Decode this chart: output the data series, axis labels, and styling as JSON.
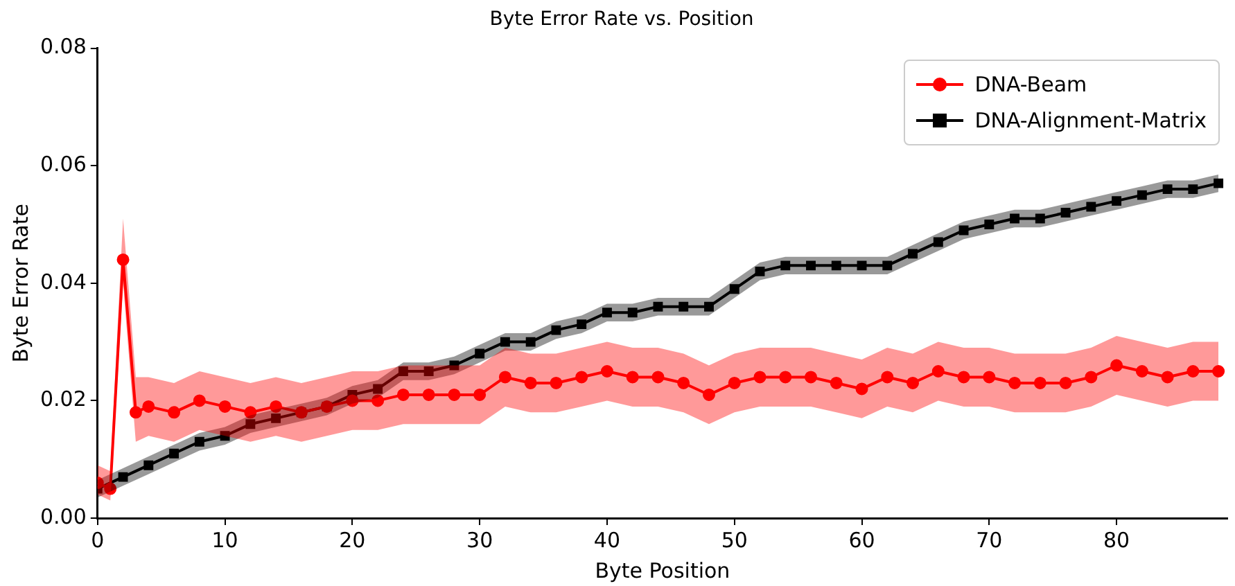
{
  "chart_data": {
    "type": "line",
    "title": "Byte Error Rate vs. Position",
    "xlabel": "Byte Position",
    "ylabel": "Byte Error Rate",
    "xlim": [
      0,
      88.7
    ],
    "xticks": [
      0,
      10,
      20,
      30,
      40,
      50,
      60,
      70,
      80
    ],
    "ylim": [
      0,
      0.08
    ],
    "yticks": [
      {
        "value": 0,
        "label": "0.00"
      },
      {
        "value": 0.02,
        "label": "0.02"
      },
      {
        "value": 0.04,
        "label": "0.04"
      },
      {
        "value": 0.06,
        "label": "0.06"
      },
      {
        "value": 0.08,
        "label": "0.08"
      }
    ],
    "legend": "top right",
    "grid": false,
    "series": [
      {
        "name": "DNA-Beam",
        "color": "#ff0000",
        "marker": "circle",
        "x": [
          0,
          1,
          2,
          3,
          4,
          6,
          8,
          10,
          12,
          14,
          16,
          18,
          20,
          22,
          24,
          26,
          28,
          30,
          32,
          34,
          36,
          38,
          40,
          42,
          44,
          46,
          48,
          50,
          52,
          54,
          56,
          58,
          60,
          62,
          64,
          66,
          68,
          70,
          72,
          74,
          76,
          78,
          80,
          82,
          84,
          86,
          88
        ],
        "values": [
          0.006,
          0.005,
          0.044,
          0.018,
          0.019,
          0.018,
          0.02,
          0.019,
          0.018,
          0.019,
          0.018,
          0.019,
          0.02,
          0.02,
          0.021,
          0.021,
          0.021,
          0.021,
          0.024,
          0.023,
          0.023,
          0.024,
          0.025,
          0.024,
          0.024,
          0.023,
          0.021,
          0.023,
          0.024,
          0.024,
          0.024,
          0.023,
          0.022,
          0.024,
          0.023,
          0.025,
          0.024,
          0.024,
          0.023,
          0.023,
          0.023,
          0.024,
          0.026,
          0.025,
          0.024,
          0.025,
          0.025
        ],
        "lower": [
          0.004,
          0.003,
          0.04,
          0.013,
          0.014,
          0.013,
          0.015,
          0.014,
          0.013,
          0.014,
          0.013,
          0.014,
          0.015,
          0.015,
          0.016,
          0.016,
          0.016,
          0.016,
          0.019,
          0.018,
          0.018,
          0.019,
          0.02,
          0.019,
          0.019,
          0.018,
          0.016,
          0.018,
          0.019,
          0.019,
          0.019,
          0.018,
          0.017,
          0.019,
          0.018,
          0.02,
          0.019,
          0.019,
          0.018,
          0.018,
          0.018,
          0.019,
          0.021,
          0.02,
          0.019,
          0.02,
          0.02
        ],
        "upper": [
          0.009,
          0.008,
          0.051,
          0.024,
          0.024,
          0.023,
          0.025,
          0.024,
          0.023,
          0.024,
          0.023,
          0.024,
          0.025,
          0.025,
          0.026,
          0.026,
          0.026,
          0.026,
          0.029,
          0.028,
          0.028,
          0.029,
          0.03,
          0.029,
          0.029,
          0.028,
          0.026,
          0.028,
          0.029,
          0.029,
          0.029,
          0.028,
          0.027,
          0.029,
          0.028,
          0.03,
          0.029,
          0.029,
          0.028,
          0.028,
          0.028,
          0.029,
          0.031,
          0.03,
          0.029,
          0.03,
          0.03
        ]
      },
      {
        "name": "DNA-Alignment-Matrix",
        "color": "#000000",
        "marker": "square",
        "x": [
          0,
          2,
          4,
          6,
          8,
          10,
          12,
          14,
          16,
          18,
          20,
          22,
          24,
          26,
          28,
          30,
          32,
          34,
          36,
          38,
          40,
          42,
          44,
          46,
          48,
          50,
          52,
          54,
          56,
          58,
          60,
          62,
          64,
          66,
          68,
          70,
          72,
          74,
          76,
          78,
          80,
          82,
          84,
          86,
          88
        ],
        "values": [
          0.005,
          0.007,
          0.009,
          0.011,
          0.013,
          0.014,
          0.016,
          0.017,
          0.018,
          0.019,
          0.021,
          0.022,
          0.025,
          0.025,
          0.026,
          0.028,
          0.03,
          0.03,
          0.032,
          0.033,
          0.035,
          0.035,
          0.036,
          0.036,
          0.036,
          0.039,
          0.042,
          0.043,
          0.043,
          0.043,
          0.043,
          0.043,
          0.045,
          0.047,
          0.049,
          0.05,
          0.051,
          0.051,
          0.052,
          0.053,
          0.054,
          0.055,
          0.056,
          0.056,
          0.057
        ],
        "lower": [
          0.0035,
          0.0055,
          0.0075,
          0.0095,
          0.0115,
          0.0125,
          0.0145,
          0.0155,
          0.0165,
          0.0175,
          0.0195,
          0.0205,
          0.0235,
          0.0235,
          0.0245,
          0.0265,
          0.0285,
          0.0285,
          0.0305,
          0.0315,
          0.0335,
          0.0335,
          0.0345,
          0.0345,
          0.0345,
          0.0375,
          0.0405,
          0.0415,
          0.0415,
          0.0415,
          0.0415,
          0.0415,
          0.0435,
          0.0455,
          0.0475,
          0.0485,
          0.0495,
          0.0495,
          0.0505,
          0.0515,
          0.0525,
          0.0535,
          0.0545,
          0.0545,
          0.0555
        ],
        "upper": [
          0.0065,
          0.0085,
          0.0105,
          0.0125,
          0.0145,
          0.0155,
          0.0175,
          0.0185,
          0.0195,
          0.0205,
          0.0225,
          0.0235,
          0.0265,
          0.0265,
          0.0275,
          0.0295,
          0.0315,
          0.0315,
          0.0335,
          0.0345,
          0.0365,
          0.0365,
          0.0375,
          0.0375,
          0.0375,
          0.0405,
          0.0435,
          0.0445,
          0.0445,
          0.0445,
          0.0445,
          0.0445,
          0.0465,
          0.0485,
          0.0505,
          0.0515,
          0.0525,
          0.0525,
          0.0535,
          0.0545,
          0.0555,
          0.0565,
          0.0575,
          0.0575,
          0.0585
        ]
      }
    ]
  }
}
